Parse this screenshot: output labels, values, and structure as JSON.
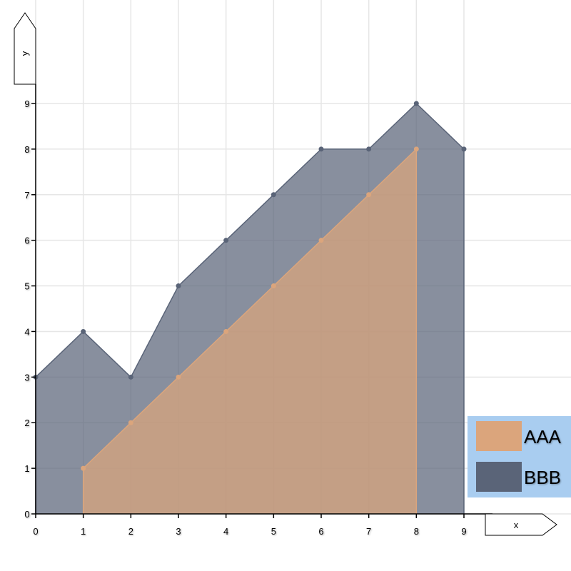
{
  "chart_data": {
    "type": "area",
    "title": "",
    "xlabel": "x",
    "ylabel": "y",
    "xlim": [
      0,
      9
    ],
    "ylim": [
      0,
      9
    ],
    "x_ticks": [
      "0",
      "1",
      "2",
      "3",
      "4",
      "5",
      "6",
      "7",
      "8",
      "9"
    ],
    "y_ticks": [
      "0",
      "1",
      "2",
      "3",
      "4",
      "5",
      "6",
      "7",
      "8",
      "9"
    ],
    "grid": true,
    "legend_position": "bottom-right",
    "series": [
      {
        "name": "BBB",
        "x": [
          0,
          1,
          2,
          3,
          4,
          5,
          6,
          7,
          8,
          9
        ],
        "y": [
          3,
          4,
          3,
          5,
          6,
          7,
          8,
          8,
          9,
          8
        ],
        "color": "#5a6478"
      },
      {
        "name": "AAA",
        "x": [
          1,
          2,
          3,
          4,
          5,
          6,
          7,
          8
        ],
        "y": [
          1,
          2,
          3,
          4,
          5,
          6,
          7,
          8
        ],
        "color": "#dba57c"
      }
    ],
    "legend_background": "#a9cdf0"
  }
}
